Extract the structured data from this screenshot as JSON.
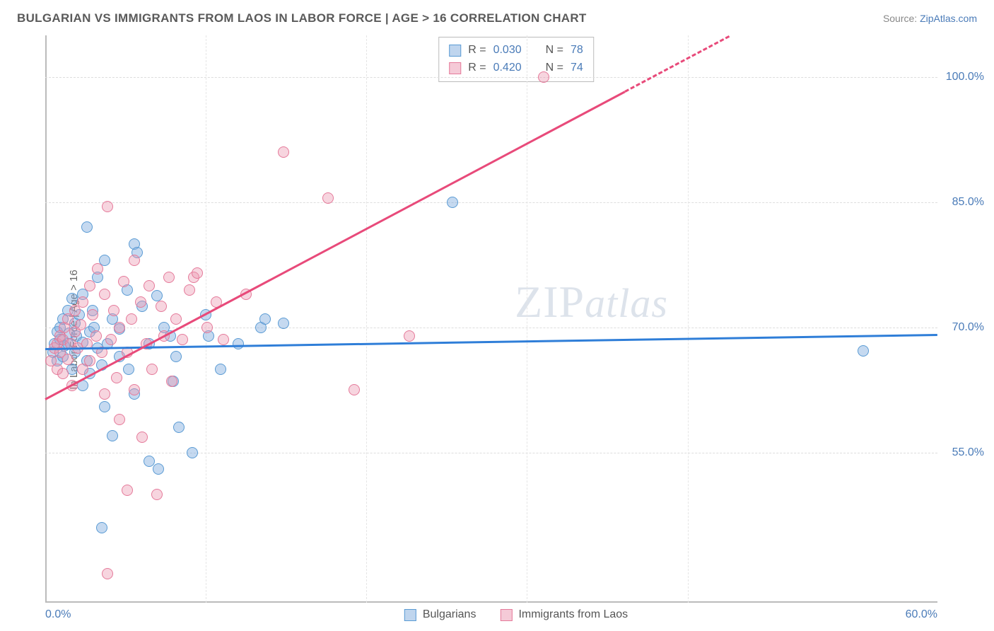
{
  "header": {
    "title": "BULGARIAN VS IMMIGRANTS FROM LAOS IN LABOR FORCE | AGE > 16 CORRELATION CHART",
    "source_prefix": "Source: ",
    "source_name": "ZipAtlas.com"
  },
  "chart": {
    "type": "scatter",
    "ylabel": "In Labor Force | Age > 16",
    "xlim": [
      0,
      60
    ],
    "ylim": [
      37,
      105
    ],
    "ytick_values": [
      55,
      70,
      85,
      100
    ],
    "ytick_labels": [
      "55.0%",
      "70.0%",
      "85.0%",
      "100.0%"
    ],
    "xtick_values": [
      0,
      60
    ],
    "xtick_labels": [
      "0.0%",
      "60.0%"
    ],
    "x_gridlines": [
      10.8,
      21.6,
      32.4,
      43.2
    ],
    "background_color": "#ffffff",
    "grid_color": "#dddddd",
    "axis_color": "#bbbbbb",
    "watermark": "ZIPatlas",
    "series": [
      {
        "name": "Bulgarians",
        "color_fill": "rgba(127,171,222,0.45)",
        "color_stroke": "#5a9bd4",
        "marker_size": 16,
        "trend_color": "#2f7ed8",
        "trend": {
          "x1": 0,
          "y1": 67.5,
          "x2": 60,
          "y2": 69.2
        },
        "stats": {
          "R": "0.030",
          "N": "78"
        },
        "points": [
          [
            0.5,
            67
          ],
          [
            0.6,
            68
          ],
          [
            0.8,
            66
          ],
          [
            0.8,
            69.5
          ],
          [
            1.0,
            70
          ],
          [
            1.0,
            68.5
          ],
          [
            1.2,
            71
          ],
          [
            1.2,
            66.5
          ],
          [
            1.3,
            67.8
          ],
          [
            1.5,
            72
          ],
          [
            1.5,
            68
          ],
          [
            1.6,
            69.3
          ],
          [
            1.8,
            73.5
          ],
          [
            1.8,
            65
          ],
          [
            2.0,
            70.5
          ],
          [
            2.0,
            67
          ],
          [
            2.1,
            69
          ],
          [
            2.3,
            71.5
          ],
          [
            2.5,
            74
          ],
          [
            2.5,
            68.2
          ],
          [
            2.5,
            63
          ],
          [
            2.8,
            82
          ],
          [
            2.8,
            66
          ],
          [
            3.0,
            69.5
          ],
          [
            3.0,
            64.5
          ],
          [
            3.2,
            72
          ],
          [
            3.3,
            70
          ],
          [
            3.5,
            76
          ],
          [
            3.5,
            67.5
          ],
          [
            3.8,
            65.5
          ],
          [
            4.0,
            78
          ],
          [
            4.0,
            60.5
          ],
          [
            4.2,
            68
          ],
          [
            4.5,
            71
          ],
          [
            4.5,
            57
          ],
          [
            5.0,
            66.5
          ],
          [
            5.0,
            69.8
          ],
          [
            5.5,
            74.5
          ],
          [
            5.6,
            65
          ],
          [
            6.0,
            80
          ],
          [
            6.0,
            62
          ],
          [
            6.2,
            79
          ],
          [
            6.5,
            72.5
          ],
          [
            7.0,
            54
          ],
          [
            7.0,
            68
          ],
          [
            7.5,
            73.8
          ],
          [
            7.6,
            53
          ],
          [
            8.0,
            70
          ],
          [
            8.4,
            69
          ],
          [
            8.6,
            63.5
          ],
          [
            8.8,
            66.5
          ],
          [
            9.0,
            58
          ],
          [
            9.9,
            55
          ],
          [
            10.8,
            71.5
          ],
          [
            11.0,
            69
          ],
          [
            11.8,
            65
          ],
          [
            13.0,
            68
          ],
          [
            14.5,
            70
          ],
          [
            14.8,
            71
          ],
          [
            16.0,
            70.5
          ],
          [
            27.4,
            85
          ],
          [
            55.0,
            67.2
          ],
          [
            3.8,
            46
          ]
        ]
      },
      {
        "name": "Immigrants from Laos",
        "color_fill": "rgba(235,150,175,0.4)",
        "color_stroke": "#e57a9a",
        "marker_size": 16,
        "trend_color": "#e84a7a",
        "trend": {
          "x1": 0,
          "y1": 61.5,
          "x2": 46,
          "y2": 105
        },
        "trend_dashed_from": 39,
        "stats": {
          "R": "0.420",
          "N": "74"
        },
        "points": [
          [
            0.4,
            66
          ],
          [
            0.6,
            67.5
          ],
          [
            0.8,
            68
          ],
          [
            0.8,
            65
          ],
          [
            1.0,
            69
          ],
          [
            1.0,
            67
          ],
          [
            1.2,
            68.5
          ],
          [
            1.2,
            64.5
          ],
          [
            1.3,
            70
          ],
          [
            1.5,
            66.2
          ],
          [
            1.5,
            71
          ],
          [
            1.7,
            68
          ],
          [
            1.8,
            63
          ],
          [
            2.0,
            69.5
          ],
          [
            2.0,
            72
          ],
          [
            2.2,
            67.5
          ],
          [
            2.4,
            70.3
          ],
          [
            2.5,
            73
          ],
          [
            2.5,
            65
          ],
          [
            2.8,
            68
          ],
          [
            3.0,
            75
          ],
          [
            3.0,
            66
          ],
          [
            3.2,
            71.5
          ],
          [
            3.4,
            69
          ],
          [
            3.5,
            77
          ],
          [
            3.8,
            67
          ],
          [
            4.0,
            74
          ],
          [
            4.0,
            62
          ],
          [
            4.2,
            84.5
          ],
          [
            4.4,
            68.5
          ],
          [
            4.6,
            72
          ],
          [
            4.8,
            64
          ],
          [
            5.0,
            70
          ],
          [
            5.0,
            59
          ],
          [
            5.3,
            75.5
          ],
          [
            5.5,
            67
          ],
          [
            5.8,
            71
          ],
          [
            6.0,
            78
          ],
          [
            6.0,
            62.5
          ],
          [
            6.4,
            73
          ],
          [
            6.5,
            56.8
          ],
          [
            6.8,
            68
          ],
          [
            7.0,
            75
          ],
          [
            7.2,
            65
          ],
          [
            7.5,
            50
          ],
          [
            7.8,
            72.5
          ],
          [
            8.0,
            69
          ],
          [
            8.3,
            76
          ],
          [
            8.5,
            63.5
          ],
          [
            8.8,
            71
          ],
          [
            9.2,
            68.5
          ],
          [
            9.7,
            74.5
          ],
          [
            10.0,
            76
          ],
          [
            10.2,
            76.5
          ],
          [
            10.9,
            70
          ],
          [
            11.5,
            73
          ],
          [
            12.0,
            68.5
          ],
          [
            13.5,
            74
          ],
          [
            16.0,
            91
          ],
          [
            19.0,
            85.5
          ],
          [
            20.8,
            62.5
          ],
          [
            24.5,
            69
          ],
          [
            33.5,
            100
          ],
          [
            4.2,
            40.5
          ],
          [
            5.5,
            50.5
          ]
        ]
      }
    ],
    "stats_box": {
      "row_labels": [
        "R =",
        "N ="
      ]
    },
    "legend": {
      "items": [
        "Bulgarians",
        "Immigrants from Laos"
      ]
    }
  }
}
